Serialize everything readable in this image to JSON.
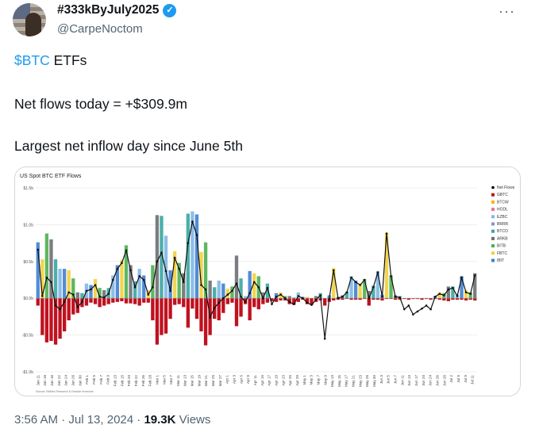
{
  "tweet": {
    "display_name": "#333kByJuly2025",
    "handle": "@CarpeNoctom",
    "cashtag": "$BTC",
    "line1_rest": " ETFs",
    "line2": "Net flows today = +$309.9m",
    "line3": "Largest net inflow day since June 5th",
    "time": "3:56 AM · Jul 13, 2024 · ",
    "views_count": "19.3K",
    "views_label": " Views",
    "icons": {
      "verified": "verified-badge-icon",
      "more": "more-options-icon",
      "avatar": "avatar"
    },
    "colors": {
      "link": "#1d9bf0",
      "muted": "#536471",
      "text": "#0f1419"
    }
  },
  "chart_data": {
    "type": "bar",
    "title": "US Spot BTC ETF Flows",
    "source": "Source: BitMex Research & Farside Investors",
    "ylim": [
      -1.0,
      1.5
    ],
    "yticks": [
      {
        "v": 1.5,
        "label": "$1.5b"
      },
      {
        "v": 1.0,
        "label": "$1.0b"
      },
      {
        "v": 0.5,
        "label": "$0.5b"
      },
      {
        "v": 0.0,
        "label": "$0.0b"
      },
      {
        "v": -0.5,
        "label": "-$0.5b"
      },
      {
        "v": -1.0,
        "label": "-$1.0b"
      }
    ],
    "xticks": [
      "Jan 11",
      "Jan 16",
      "Jan 18",
      "Jan 22",
      "Jan 24",
      "Jan 26",
      "Jan 30",
      "Feb 1",
      "Feb 5",
      "Feb 7",
      "Feb 9",
      "Feb 13",
      "Feb 15",
      "Feb 20",
      "Feb 22",
      "Feb 26",
      "Feb 28",
      "Mar 1",
      "Mar 5",
      "Mar 7",
      "Mar 11",
      "Mar 13",
      "Mar 15",
      "Mar 19",
      "Mar 21",
      "Mar 25",
      "Mar 27",
      "Apr 1",
      "Apr 3",
      "Apr 5",
      "Apr 9",
      "Apr 11",
      "Apr 15",
      "Apr 17",
      "Apr 19",
      "Apr 23",
      "Apr 25",
      "Apr 29",
      "May 1",
      "May 3",
      "May 7",
      "May 9",
      "May 13",
      "May 15",
      "May 17",
      "May 21",
      "May 23",
      "May 28",
      "May 30",
      "Jun 3",
      "Jun 5",
      "Jun 7",
      "Jun 11",
      "Jun 13",
      "Jun 17",
      "Jun 20",
      "Jun 24",
      "Jun 26",
      "Jun 28",
      "Jul 2",
      "Jul 5",
      "Jul 9",
      "Jul 11"
    ],
    "legend": [
      {
        "name": "Net Flows",
        "color": "#000000",
        "kind": "line"
      },
      {
        "name": "GBTC",
        "color": "#c0111f",
        "kind": "square"
      },
      {
        "name": "BTCW",
        "color": "#f4b400",
        "kind": "square"
      },
      {
        "name": "HODL",
        "color": "#e8748f",
        "kind": "square"
      },
      {
        "name": "EZBC",
        "color": "#7fb7e6",
        "kind": "square"
      },
      {
        "name": "BRRR",
        "color": "#8e8cd8",
        "kind": "square"
      },
      {
        "name": "BTCO",
        "color": "#3aa5a0",
        "kind": "square"
      },
      {
        "name": "ARKB",
        "color": "#6d6f73",
        "kind": "square"
      },
      {
        "name": "BITB",
        "color": "#4caf50",
        "kind": "square"
      },
      {
        "name": "FBTC",
        "color": "#f2d03b",
        "kind": "square"
      },
      {
        "name": "IBIT",
        "color": "#3f7fd1",
        "kind": "square"
      }
    ],
    "legend_position": "right",
    "net_flows": [
      0.66,
      0.03,
      0.28,
      0.22,
      -0.1,
      -0.15,
      -0.05,
      0.08,
      0.05,
      -0.12,
      -0.05,
      0.1,
      0.12,
      0.18,
      0.02,
      0.01,
      0.06,
      0.25,
      0.4,
      0.48,
      0.65,
      0.38,
      0.15,
      0.3,
      0.25,
      0.05,
      0.15,
      0.5,
      0.62,
      0.37,
      0.1,
      0.55,
      0.4,
      0.22,
      0.75,
      1.04,
      0.86,
      0.18,
      0.12,
      -0.26,
      -0.13,
      -0.06,
      0.0,
      0.05,
      0.1,
      0.2,
      0.02,
      -0.05,
      0.07,
      0.22,
      0.15,
      0.0,
      0.14,
      -0.08,
      0.02,
      0.05,
      0.0,
      -0.05,
      -0.08,
      0.03,
      0.0,
      -0.06,
      -0.09,
      -0.02,
      0.04,
      -0.55,
      -0.01,
      0.38,
      0.0,
      0.02,
      0.08,
      0.28,
      0.22,
      0.18,
      0.25,
      0.0,
      0.15,
      0.35,
      0.02,
      0.88,
      0.3,
      0.02,
      0.01,
      -0.15,
      -0.1,
      -0.22,
      -0.18,
      -0.14,
      -0.1,
      -0.15,
      0.02,
      0.06,
      0.04,
      0.12,
      0.14,
      0.03,
      0.28,
      0.08,
      0.06,
      0.31
    ],
    "gbtc": [
      -0.1,
      -0.5,
      -0.6,
      -0.58,
      -0.63,
      -0.55,
      -0.45,
      -0.3,
      -0.22,
      -0.2,
      -0.12,
      -0.1,
      -0.06,
      -0.08,
      -0.12,
      -0.1,
      -0.08,
      -0.06,
      -0.05,
      -0.04,
      -0.07,
      -0.07,
      -0.08,
      -0.1,
      -0.06,
      -0.06,
      -0.3,
      -0.63,
      -0.5,
      -0.48,
      -0.28,
      -0.09,
      -0.08,
      -0.12,
      -0.4,
      -0.14,
      -0.28,
      -0.45,
      -0.64,
      -0.5,
      -0.28,
      -0.3,
      -0.2,
      -0.08,
      -0.06,
      -0.38,
      -0.25,
      -0.08,
      -0.3,
      -0.12,
      -0.15,
      -0.08,
      -0.06,
      -0.04,
      -0.05,
      -0.03,
      -0.03,
      -0.08,
      -0.09,
      -0.05,
      -0.02,
      -0.08,
      -0.09,
      -0.05,
      -0.03,
      -0.1,
      -0.05,
      -0.03,
      -0.02,
      -0.02,
      -0.01,
      -0.02,
      -0.02,
      -0.02,
      -0.01,
      -0.1,
      -0.02,
      -0.02,
      -0.03,
      -0.01,
      -0.01,
      -0.02,
      -0.02,
      -0.01,
      -0.02,
      -0.01,
      -0.01,
      -0.02,
      -0.01,
      -0.02,
      -0.01,
      -0.02,
      -0.03,
      -0.04,
      -0.02,
      -0.02,
      -0.02,
      -0.03,
      -0.02,
      -0.03
    ],
    "note": "Only one series (Net Flows) and the GBTC outflows are tabulated per trading day here; the stacked positive bars for the other funds are drawn as one inflow bar (net + GBTC outflow)."
  }
}
